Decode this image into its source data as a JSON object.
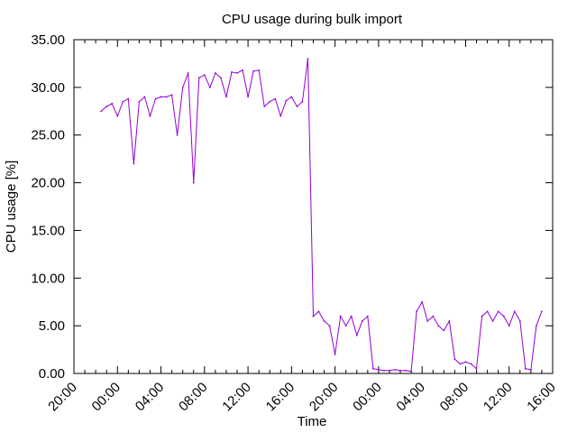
{
  "chart_data": {
    "type": "line",
    "title": "CPU usage during bulk import",
    "xlabel": "Time",
    "ylabel": "CPU usage [%]",
    "ylim": [
      0,
      35
    ],
    "xlim_hours": [
      0,
      44
    ],
    "grid": false,
    "legend": "none",
    "y_ticks": [
      "0.00",
      "5.00",
      "10.00",
      "15.00",
      "20.00",
      "25.00",
      "30.00",
      "35.00"
    ],
    "x_ticks": [
      "20:00",
      "00:00",
      "04:00",
      "08:00",
      "12:00",
      "16:00",
      "20:00",
      "00:00",
      "04:00",
      "08:00",
      "12:00",
      "16:00"
    ],
    "series": [
      {
        "color": "#9400d3",
        "x_hours": [
          2.5,
          3,
          3.5,
          4,
          4.5,
          5,
          5.5,
          6,
          6.5,
          7,
          7.5,
          8,
          8.5,
          9,
          9.5,
          10,
          10.5,
          11,
          11.5,
          12,
          12.5,
          13,
          13.5,
          14,
          14.5,
          15,
          15.5,
          16,
          16.5,
          17,
          17.5,
          18,
          18.5,
          19,
          19.5,
          20,
          20.5,
          21,
          21.5,
          22,
          22.5,
          23,
          23.5,
          24,
          24.5,
          25,
          25.5,
          26,
          26.5,
          27,
          27.5,
          28,
          28.5,
          29,
          29.5,
          30,
          30.5,
          31,
          31.5,
          32,
          32.5,
          33,
          33.5,
          34,
          34.5,
          35,
          35.5,
          36,
          36.5,
          37,
          37.5,
          38,
          38.5,
          39,
          39.5,
          40,
          40.5,
          41,
          41.5,
          42,
          42.5,
          43
        ],
        "values": [
          27.5,
          28.0,
          28.3,
          27.0,
          28.5,
          28.8,
          22.0,
          28.5,
          29.0,
          27.0,
          28.8,
          29.0,
          29.0,
          29.2,
          25.0,
          30.0,
          31.5,
          20.0,
          31.0,
          31.3,
          30.0,
          31.5,
          31.0,
          29.0,
          31.6,
          31.5,
          31.8,
          29.0,
          31.7,
          31.8,
          28.0,
          28.5,
          28.8,
          27.0,
          28.6,
          29.0,
          28.0,
          28.5,
          33.0,
          6.0,
          6.5,
          5.5,
          5.0,
          2.0,
          6.0,
          5.0,
          6.0,
          4.0,
          5.5,
          6.0,
          0.5,
          0.4,
          0.3,
          0.3,
          0.4,
          0.3,
          0.3,
          0.2,
          6.5,
          7.5,
          5.5,
          6.0,
          5.0,
          4.5,
          5.5,
          1.5,
          1.0,
          1.2,
          1.0,
          0.5,
          6.0,
          6.5,
          5.5,
          6.5,
          6.0,
          5.0,
          6.5,
          5.5,
          0.5,
          0.4,
          5.0,
          6.5
        ]
      }
    ]
  }
}
